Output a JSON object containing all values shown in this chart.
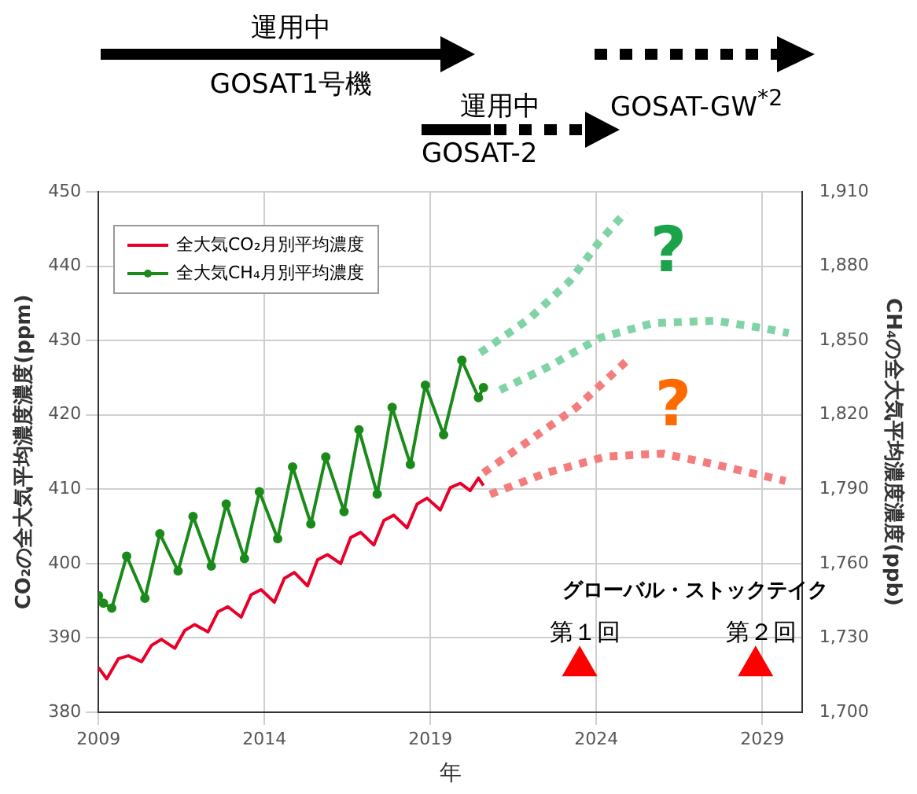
{
  "chart_data": {
    "type": "line",
    "xlabel": "年",
    "ylabel": "CO₂の全大気平均濃度濃度(ppm)",
    "y2label": "CH₄の全大気平均濃度濃度(ppb)",
    "xlim": [
      2009,
      2030.2
    ],
    "xticks": [
      2009,
      2014,
      2019,
      2024,
      2029
    ],
    "ylim": [
      380,
      450
    ],
    "yticks": [
      380,
      390,
      400,
      410,
      420,
      430,
      440,
      450
    ],
    "y2lim": [
      1700,
      1910
    ],
    "y2ticks": [
      {
        "value": 1700,
        "label": "1,700"
      },
      {
        "value": 1730,
        "label": "1,730"
      },
      {
        "value": 1760,
        "label": "1,760"
      },
      {
        "value": 1790,
        "label": "1,790"
      },
      {
        "value": 1820,
        "label": "1,820"
      },
      {
        "value": 1850,
        "label": "1,850"
      },
      {
        "value": 1880,
        "label": "1,880"
      },
      {
        "value": 1910,
        "label": "1,910"
      }
    ],
    "grid": true,
    "legend": "top left",
    "series": [
      {
        "name": "全大気CO₂月別平均濃度",
        "color": "#e8002a",
        "marker": "none",
        "line_style": "solid",
        "axis": "y",
        "x": [
          2009.0,
          2009.25,
          2009.6,
          2009.9,
          2010.3,
          2010.6,
          2010.9,
          2011.3,
          2011.6,
          2011.9,
          2012.3,
          2012.6,
          2012.9,
          2013.3,
          2013.6,
          2013.9,
          2014.3,
          2014.6,
          2014.9,
          2015.3,
          2015.6,
          2015.9,
          2016.3,
          2016.6,
          2016.9,
          2017.3,
          2017.6,
          2017.9,
          2018.3,
          2018.6,
          2018.9,
          2019.3,
          2019.6,
          2019.9,
          2020.2,
          2020.45,
          2020.6
        ],
        "values": [
          386.0,
          384.5,
          387.2,
          387.6,
          386.8,
          389.0,
          389.8,
          388.6,
          391.0,
          391.8,
          390.8,
          393.5,
          394.2,
          392.8,
          395.8,
          396.5,
          394.8,
          398.0,
          398.8,
          397.0,
          400.5,
          401.2,
          400.0,
          403.5,
          404.2,
          402.5,
          405.8,
          406.5,
          404.8,
          408.0,
          408.8,
          407.2,
          410.2,
          410.8,
          409.8,
          411.5,
          410.5
        ]
      },
      {
        "name": "全大気CH₄月別平均濃度",
        "color": "#1a8a1a",
        "marker": "circle",
        "line_style": "solid",
        "axis": "y2",
        "x": [
          2009.0,
          2009.15,
          2009.4,
          2009.85,
          2010.4,
          2010.85,
          2011.4,
          2011.85,
          2012.4,
          2012.85,
          2013.4,
          2013.85,
          2014.4,
          2014.85,
          2015.4,
          2015.85,
          2016.4,
          2016.85,
          2017.4,
          2017.85,
          2018.4,
          2018.85,
          2019.4,
          2019.95,
          2020.45,
          2020.6
        ],
        "values": [
          1747,
          1744,
          1742,
          1763,
          1746,
          1772,
          1757,
          1779,
          1759,
          1784,
          1762,
          1789,
          1770,
          1799,
          1776,
          1803,
          1781,
          1814,
          1788,
          1823,
          1800,
          1832,
          1812,
          1842,
          1827,
          1831
        ]
      },
      {
        "color": "#7fd3a4",
        "type": "line",
        "marker": "none",
        "line_style": "dotted",
        "axis": "y2",
        "x": [
          2020.5,
          2022.0,
          2023.2,
          2024.1,
          2024.9
        ],
        "values": [
          1845,
          1859,
          1874,
          1890,
          1902
        ]
      },
      {
        "color": "#7fd3a4",
        "type": "line",
        "marker": "none",
        "line_style": "dotted",
        "axis": "y2",
        "x": [
          2021.1,
          2022.5,
          2024.1,
          2025.7,
          2027.6,
          2029.0,
          2029.8
        ],
        "values": [
          1830,
          1839,
          1851,
          1857,
          1858,
          1855,
          1853
        ]
      },
      {
        "color": "#f47c7c",
        "type": "line",
        "marker": "none",
        "line_style": "dotted",
        "axis": "y",
        "x": [
          2020.6,
          2022.0,
          2023.4,
          2025.0
        ],
        "values": [
          412.2,
          416.6,
          421.0,
          427.6
        ]
      },
      {
        "color": "#f47c7c",
        "type": "line",
        "marker": "none",
        "line_style": "dotted",
        "axis": "y",
        "x": [
          2020.8,
          2022.5,
          2024.3,
          2026.0,
          2027.6,
          2029.7
        ],
        "values": [
          409.3,
          412.2,
          414.4,
          414.8,
          413.3,
          411.1
        ]
      },
      {
        "color": "#ff0000",
        "type": "scatter",
        "marker": "triangle",
        "axis": "y",
        "x": [
          2023.5,
          2028.8
        ],
        "values": [
          386.2,
          386.2
        ]
      }
    ],
    "annotations": [
      "運用中",
      "GOSAT1号機",
      "運用中",
      "GOSAT-2",
      "GOSAT-GW$^{*2}$",
      "グローバル・ストックテイク",
      "第１回",
      "第２回",
      "?",
      "?"
    ]
  }
}
